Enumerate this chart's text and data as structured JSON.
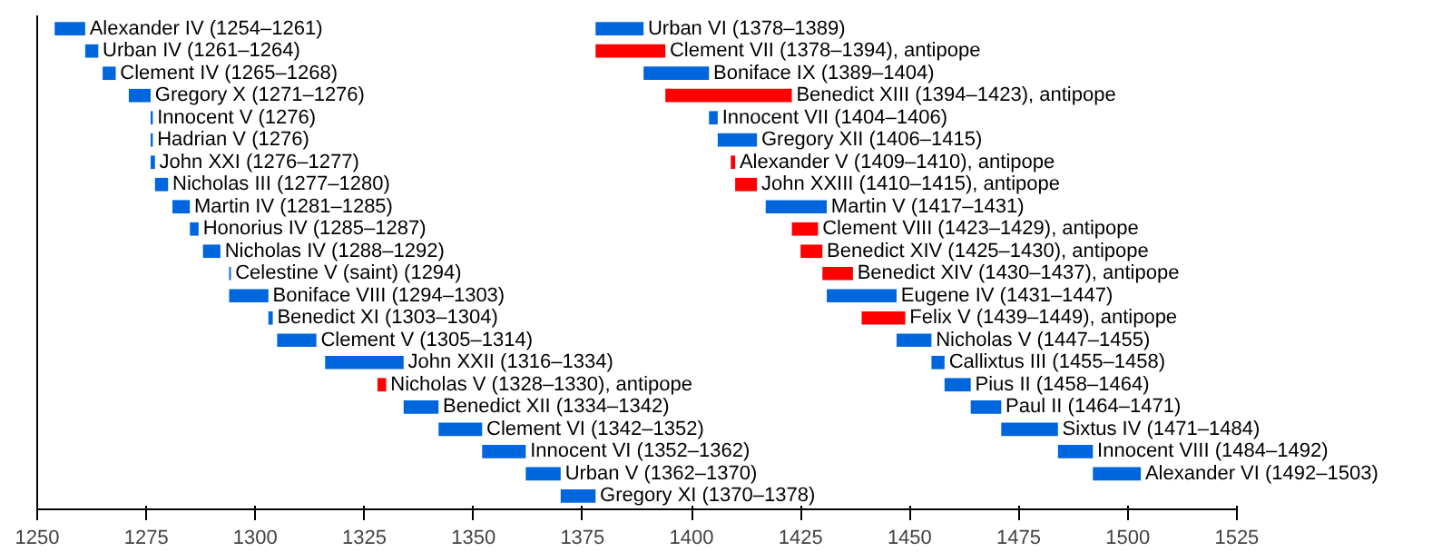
{
  "chart_data": {
    "type": "bar",
    "orientation": "horizontal",
    "tick_labels": "x",
    "grid": false,
    "categories": [
      null,
      null,
      null,
      null,
      null,
      null,
      null,
      null,
      null,
      null,
      null,
      null,
      null,
      null,
      null,
      null,
      null,
      null,
      null,
      null,
      null,
      null
    ],
    "xlim": [
      1250,
      1525
    ],
    "xticks": [
      1250,
      1275,
      1300,
      1325,
      1350,
      1375,
      1400,
      1425,
      1450,
      1475,
      1500,
      1525
    ],
    "series": [
      {
        "base": [
          1254,
          1261,
          1265,
          1271,
          1276,
          1276,
          1276,
          1277,
          1281,
          1285,
          1288,
          1294,
          1294,
          1303,
          1305,
          1316,
          1328,
          1334,
          1342,
          1352,
          1362,
          1370
        ],
        "values": [
          7,
          3,
          3,
          5,
          0.5,
          0.5,
          1,
          3,
          4,
          2,
          4,
          0.4,
          9,
          1,
          9,
          18,
          2,
          8,
          10,
          10,
          8,
          8
        ],
        "colors": [
          "#0066dd",
          "#0066dd",
          "#0066dd",
          "#0066dd",
          "#0066dd",
          "#0066dd",
          "#0066dd",
          "#0066dd",
          "#0066dd",
          "#0066dd",
          "#0066dd",
          "#0066dd",
          "#0066dd",
          "#0066dd",
          "#0066dd",
          "#0066dd",
          "#ff0000",
          "#0066dd",
          "#0066dd",
          "#0066dd",
          "#0066dd",
          "#0066dd"
        ],
        "value_labels": [
          "Alexander IV (1254–1261)",
          "Urban IV (1261–1264)",
          "Clement IV (1265–1268)",
          "Gregory X (1271–1276)",
          "Innocent V (1276)",
          "Hadrian V (1276)",
          "John XXI (1276–1277)",
          "Nicholas III (1277–1280)",
          "Martin IV (1281–1285)",
          "Honorius IV (1285–1287)",
          "Nicholas IV (1288–1292)",
          "Celestine V (saint) (1294)",
          "Boniface VIII (1294–1303)",
          "Benedict XI (1303–1304)",
          "Clement V (1305–1314)",
          "John XXII (1316–1334)",
          "Nicholas V (1328–1330), antipope",
          "Benedict XII (1334–1342)",
          "Clement VI (1342–1352)",
          "Innocent VI (1352–1362)",
          "Urban V (1362–1370)",
          "Gregory XI (1370–1378)"
        ]
      },
      {
        "base": [
          1378,
          1378,
          1389,
          1394,
          1404,
          1406,
          1409,
          1410,
          1417,
          1423,
          1425,
          1430,
          1431,
          1439,
          1447,
          1455,
          1458,
          1464,
          1471,
          1484,
          1492,
          null
        ],
        "values": [
          11,
          16,
          15,
          29,
          2,
          9,
          1,
          5,
          14,
          6,
          5,
          7,
          16,
          10,
          8,
          3,
          6,
          7,
          13,
          8,
          11,
          null
        ],
        "colors": [
          "#0066dd",
          "#ff0000",
          "#0066dd",
          "#ff0000",
          "#0066dd",
          "#0066dd",
          "#ff0000",
          "#ff0000",
          "#0066dd",
          "#ff0000",
          "#ff0000",
          "#ff0000",
          "#0066dd",
          "#ff0000",
          "#0066dd",
          "#0066dd",
          "#0066dd",
          "#0066dd",
          "#0066dd",
          "#0066dd",
          "#0066dd",
          null
        ],
        "value_labels": [
          "Urban VI (1378–1389)",
          "Clement VII (1378–1394), antipope",
          "Boniface IX (1389–1404)",
          "Benedict XIII (1394–1423), antipope",
          "Innocent VII (1404–1406)",
          "Gregory XII (1406–1415)",
          "Alexander V (1409–1410), antipope",
          "John XXIII (1410–1415), antipope",
          "Martin V (1417–1431)",
          "Clement VIII (1423–1429), antipope",
          "Benedict XIV (1425–1430), antipope",
          "Benedict XIV (1430–1437), antipope",
          "Eugene IV (1431–1447)",
          "Felix V (1439–1449), antipope",
          "Nicholas V (1447–1455)",
          "Callixtus III (1455–1458)",
          "Pius II (1458–1464)",
          "Paul II (1464–1471)",
          "Sixtus IV (1471–1484)",
          "Innocent VIII (1484–1492)",
          "Alexander VI (1492–1503)",
          null
        ]
      }
    ]
  }
}
